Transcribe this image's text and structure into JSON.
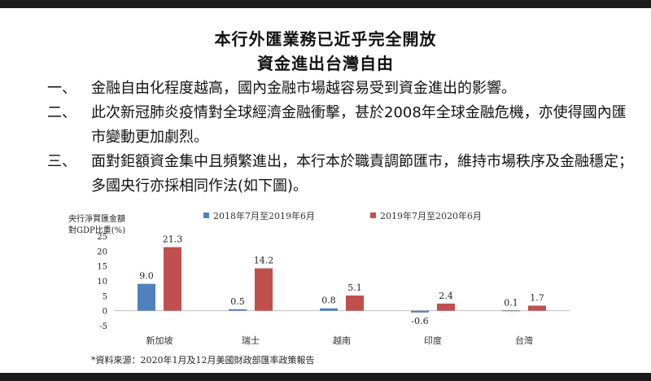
{
  "heading": {
    "line1": "本行外匯業務已近乎完全開放",
    "line2": "資金進出台灣自由"
  },
  "bullets": [
    {
      "num": "一、",
      "text": "金融自由化程度越高，國內金融市場越容易受到資金進出的影響。"
    },
    {
      "num": "二、",
      "text": "此次新冠肺炎疫情對全球經濟金融衝擊，甚於2008年全球金融危機，亦使得國內匯市變動更加劇烈。"
    },
    {
      "num": "三、",
      "text": "面對鉅額資金集中且頻繁進出，本行本於職責調節匯市，維持市場秩序及金融穩定；多國央行亦採相同作法(如下圖)。"
    }
  ],
  "chart_data": {
    "type": "bar",
    "ylabel": [
      "央行淨買匯金額",
      "對GDP比重(%)"
    ],
    "categories": [
      "新加坡",
      "瑞士",
      "越南",
      "印度",
      "台灣"
    ],
    "series": [
      {
        "name": "2018年7月至2019年6月",
        "color": "#4f81bd",
        "values": [
          9.0,
          0.5,
          0.8,
          -0.6,
          0.1
        ]
      },
      {
        "name": "2019年7月至2020年6月",
        "color": "#c0504d",
        "values": [
          21.3,
          14.2,
          5.1,
          2.4,
          1.7
        ]
      }
    ],
    "ylim": [
      -5,
      25
    ],
    "yticks": [
      -5,
      0,
      5,
      10,
      15,
      20,
      25
    ],
    "legend_position": "top",
    "grid": false,
    "source": "*資料來源：2020年1月及12月美國財政部匯率政策報告"
  }
}
